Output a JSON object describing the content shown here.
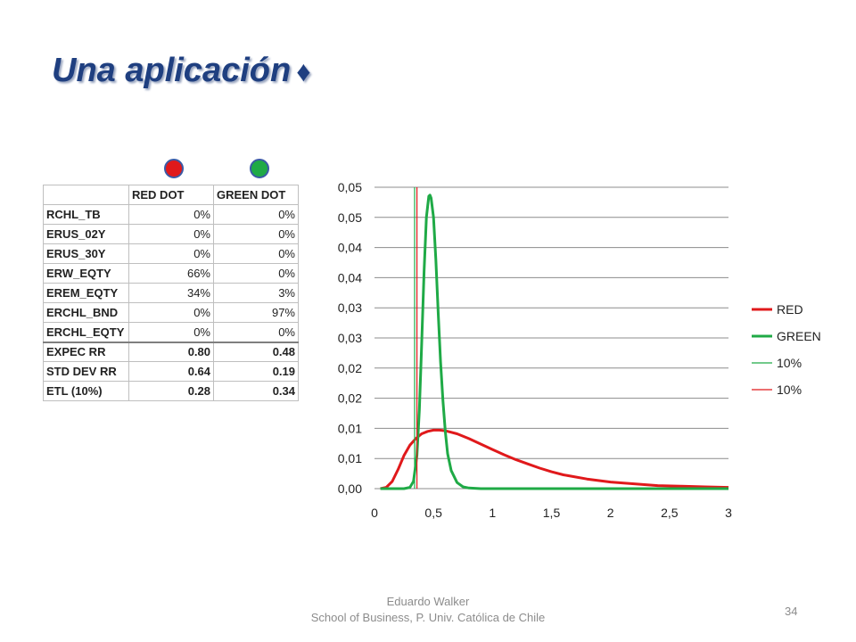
{
  "slide": {
    "title": "Una aplicación",
    "title_symbol": "♦",
    "footer_author": "Eduardo Walker",
    "footer_affiliation": "School of Business, P. Univ. Católica de Chile",
    "page_number": "34"
  },
  "colors": {
    "red": "#e0191b",
    "green": "#1faa46",
    "title": "#1f3f80",
    "dot_border": "#3b5aa6"
  },
  "table": {
    "headers": [
      "",
      "RED DOT",
      "GREEN DOT"
    ],
    "rows": [
      {
        "label": "RCHL_TB",
        "red": "0%",
        "green": "0%"
      },
      {
        "label": "ERUS_02Y",
        "red": "0%",
        "green": "0%"
      },
      {
        "label": "ERUS_30Y",
        "red": "0%",
        "green": "0%"
      },
      {
        "label": "ERW_EQTY",
        "red": "66%",
        "green": "0%"
      },
      {
        "label": "EREM_EQTY",
        "red": "34%",
        "green": "3%"
      },
      {
        "label": "ERCHL_BND",
        "red": "0%",
        "green": "97%"
      },
      {
        "label": "ERCHL_EQTY",
        "red": "0%",
        "green": "0%"
      },
      {
        "label": "EXPEC RR",
        "red": "0.80",
        "green": "0.48"
      },
      {
        "label": "STD DEV RR",
        "red": "0.64",
        "green": "0.19"
      },
      {
        "label": "ETL (10%)",
        "red": "0.28",
        "green": "0.34"
      }
    ]
  },
  "chart_data": {
    "type": "line",
    "title": "",
    "xlabel": "",
    "ylabel": "",
    "xlim": [
      0,
      3
    ],
    "ylim": [
      0,
      0.05
    ],
    "x_ticks": [
      "0",
      "0,5",
      "1",
      "1,5",
      "2",
      "2,5",
      "3"
    ],
    "y_ticks": [
      "0,00",
      "0,01",
      "0,01",
      "0,02",
      "0,02",
      "0,03",
      "0,03",
      "0,04",
      "0,04",
      "0,05",
      "0,05"
    ],
    "grid": "horizontal",
    "legend_position": "right",
    "series": [
      {
        "name": "RED",
        "color": "#e0191b",
        "x": [
          0.05,
          0.1,
          0.15,
          0.2,
          0.25,
          0.3,
          0.35,
          0.4,
          0.45,
          0.5,
          0.55,
          0.6,
          0.7,
          0.8,
          0.9,
          1.0,
          1.1,
          1.2,
          1.3,
          1.4,
          1.5,
          1.6,
          1.8,
          2.0,
          2.2,
          2.4,
          2.6,
          2.8,
          3.0
        ],
        "y": [
          0.0,
          0.0002,
          0.0012,
          0.0032,
          0.0055,
          0.0072,
          0.0083,
          0.0091,
          0.0095,
          0.0097,
          0.0097,
          0.0096,
          0.0091,
          0.0083,
          0.0074,
          0.0065,
          0.0056,
          0.0048,
          0.0041,
          0.0034,
          0.0028,
          0.0023,
          0.0016,
          0.0011,
          0.0008,
          0.0005,
          0.0004,
          0.0003,
          0.0002
        ]
      },
      {
        "name": "GREEN",
        "color": "#1faa46",
        "x": [
          0.05,
          0.25,
          0.3,
          0.33,
          0.36,
          0.38,
          0.4,
          0.42,
          0.44,
          0.46,
          0.47,
          0.48,
          0.5,
          0.52,
          0.54,
          0.56,
          0.58,
          0.6,
          0.62,
          0.65,
          0.7,
          0.75,
          0.8,
          0.9,
          3.0
        ],
        "y": [
          0.0,
          0.0,
          0.0002,
          0.0012,
          0.0055,
          0.013,
          0.024,
          0.036,
          0.045,
          0.0485,
          0.0487,
          0.0482,
          0.045,
          0.038,
          0.029,
          0.021,
          0.0145,
          0.0095,
          0.0058,
          0.003,
          0.001,
          0.0003,
          0.0001,
          0.0,
          0.0
        ]
      },
      {
        "name": "10%",
        "color": "#1faa46",
        "kind": "vline",
        "x": [
          0.34,
          0.34
        ],
        "y": [
          0,
          0.05
        ]
      },
      {
        "name": "10%",
        "color": "#e0191b",
        "kind": "vline",
        "x": [
          0.36,
          0.36
        ],
        "y": [
          0,
          0.05
        ]
      }
    ]
  }
}
